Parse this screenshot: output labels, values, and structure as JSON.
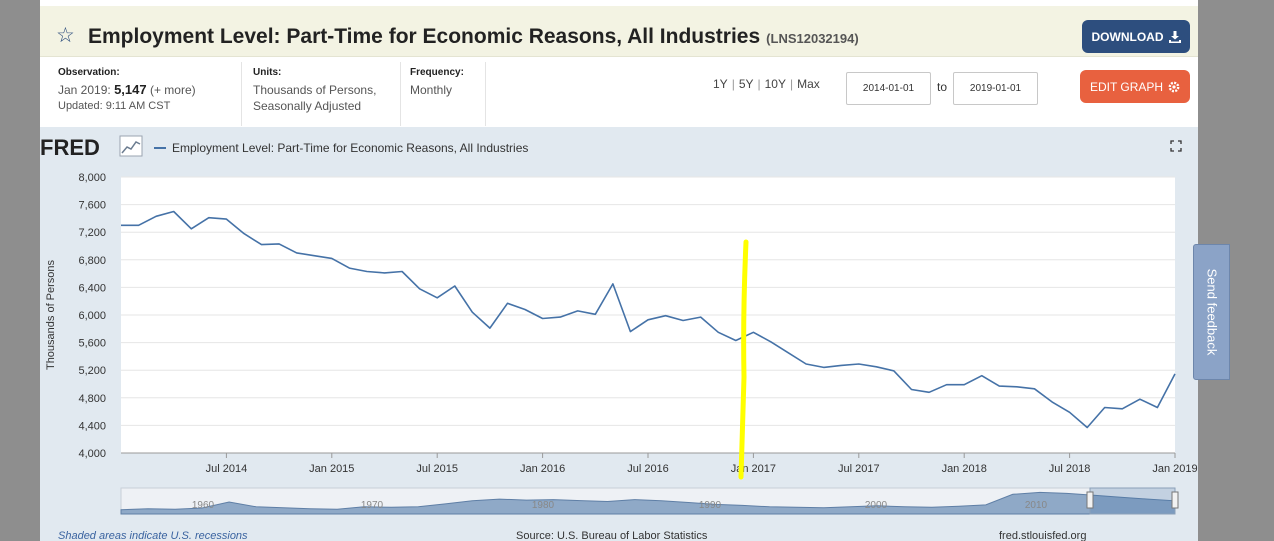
{
  "header": {
    "title": "Employment Level: Part-Time for Economic Reasons, All Industries",
    "series_id": "(LNS12032194)",
    "download_label": "DOWNLOAD"
  },
  "meta": {
    "observation_label": "Observation:",
    "observation_date": "Jan 2019:",
    "observation_value": "5,147",
    "observation_more": "(+ more)",
    "updated": "Updated: 9:11 AM CST",
    "units_label": "Units:",
    "units_line1": "Thousands of Persons,",
    "units_line2": "Seasonally Adjusted",
    "frequency_label": "Frequency:",
    "frequency_value": "Monthly"
  },
  "controls": {
    "range_1y": "1Y",
    "range_5y": "5Y",
    "range_10y": "10Y",
    "range_max": "Max",
    "start_date": "2014-01-01",
    "to_label": "to",
    "end_date": "2019-01-01",
    "edit_label": "EDIT GRAPH"
  },
  "feedback_label": "Send feedback",
  "footer": {
    "recession_note": "Shaded areas indicate U.S. recessions",
    "source": "Source: U.S. Bureau of Labor Statistics",
    "site": "fred.stlouisfed.org"
  },
  "navigator": {
    "tick_labels": [
      "1960",
      "1970",
      "1980",
      "1990",
      "2000",
      "2010"
    ]
  },
  "colors": {
    "line": "#4572a7",
    "title_bar": "#f3f3e3",
    "download_button": "#2d4e7e",
    "edit_button": "#e8613f",
    "chart_background": "#e1e9f0",
    "highlight_annotation": "#ffff00"
  },
  "chart_data": {
    "type": "line",
    "logo": "FRED",
    "legend": "Employment Level: Part-Time for Economic Reasons, All Industries",
    "legend_position": "top-left",
    "ylabel": "Thousands of Persons",
    "ylim": [
      4000,
      8000
    ],
    "yticks": [
      4000,
      4400,
      4800,
      5200,
      5600,
      6000,
      6400,
      6800,
      7200,
      7600,
      8000
    ],
    "ytick_labels": [
      "4,000",
      "4,400",
      "4,800",
      "5,200",
      "5,600",
      "6,000",
      "6,400",
      "6,800",
      "7,200",
      "7,600",
      "8,000"
    ],
    "xlim": [
      "2014-01",
      "2019-01"
    ],
    "xticks": [
      "2014-07",
      "2015-01",
      "2015-07",
      "2016-01",
      "2016-07",
      "2017-01",
      "2017-07",
      "2018-01",
      "2018-07",
      "2019-01"
    ],
    "xtick_labels": [
      "Jul 2014",
      "Jan 2015",
      "Jul 2015",
      "Jan 2016",
      "Jul 2016",
      "Jan 2017",
      "Jul 2017",
      "Jan 2018",
      "Jul 2018",
      "Jan 2019"
    ],
    "grid": true,
    "series": [
      {
        "name": "Employment Level: Part-Time for Economic Reasons, All Industries",
        "x": [
          "2014-01",
          "2014-02",
          "2014-03",
          "2014-04",
          "2014-05",
          "2014-06",
          "2014-07",
          "2014-08",
          "2014-09",
          "2014-10",
          "2014-11",
          "2014-12",
          "2015-01",
          "2015-02",
          "2015-03",
          "2015-04",
          "2015-05",
          "2015-06",
          "2015-07",
          "2015-08",
          "2015-09",
          "2015-10",
          "2015-11",
          "2015-12",
          "2016-01",
          "2016-02",
          "2016-03",
          "2016-04",
          "2016-05",
          "2016-06",
          "2016-07",
          "2016-08",
          "2016-09",
          "2016-10",
          "2016-11",
          "2016-12",
          "2017-01",
          "2017-02",
          "2017-03",
          "2017-04",
          "2017-05",
          "2017-06",
          "2017-07",
          "2017-08",
          "2017-09",
          "2017-10",
          "2017-11",
          "2017-12",
          "2018-01",
          "2018-02",
          "2018-03",
          "2018-04",
          "2018-05",
          "2018-06",
          "2018-07",
          "2018-08",
          "2018-09",
          "2018-10",
          "2018-11",
          "2018-12",
          "2019-01"
        ],
        "y": [
          7300,
          7300,
          7430,
          7500,
          7250,
          7410,
          7390,
          7180,
          7020,
          7030,
          6900,
          6860,
          6820,
          6680,
          6630,
          6610,
          6630,
          6380,
          6250,
          6420,
          6040,
          5810,
          6170,
          6080,
          5950,
          5970,
          6060,
          6010,
          6450,
          5760,
          5930,
          5990,
          5920,
          5970,
          5750,
          5630,
          5750,
          5610,
          5450,
          5290,
          5240,
          5270,
          5290,
          5250,
          5190,
          4920,
          4880,
          4990,
          4990,
          5120,
          4970,
          4960,
          4930,
          4740,
          4590,
          4370,
          4660,
          4640,
          4780,
          4660,
          5147
        ]
      }
    ]
  }
}
